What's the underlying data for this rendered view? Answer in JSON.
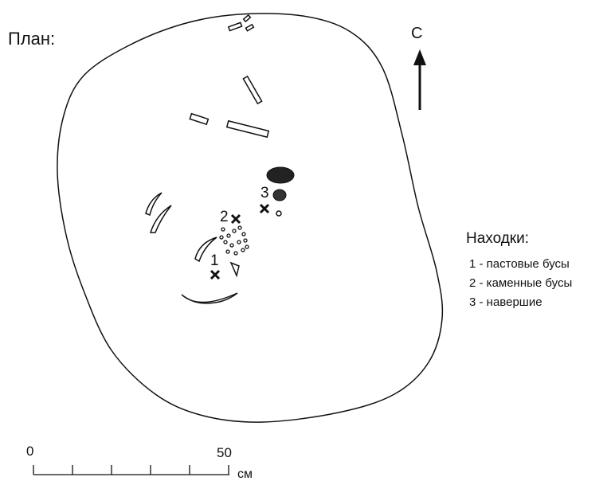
{
  "header": {
    "title": "План:"
  },
  "north": {
    "label": "С"
  },
  "finds_markers": [
    "1",
    "2",
    "3"
  ],
  "legend": {
    "title": "Находки:",
    "items": [
      "1 - пастовые бусы",
      "2 - каменные бусы",
      "3 - навершие"
    ]
  },
  "scale": {
    "start": "0",
    "end": "50",
    "unit": "см"
  }
}
